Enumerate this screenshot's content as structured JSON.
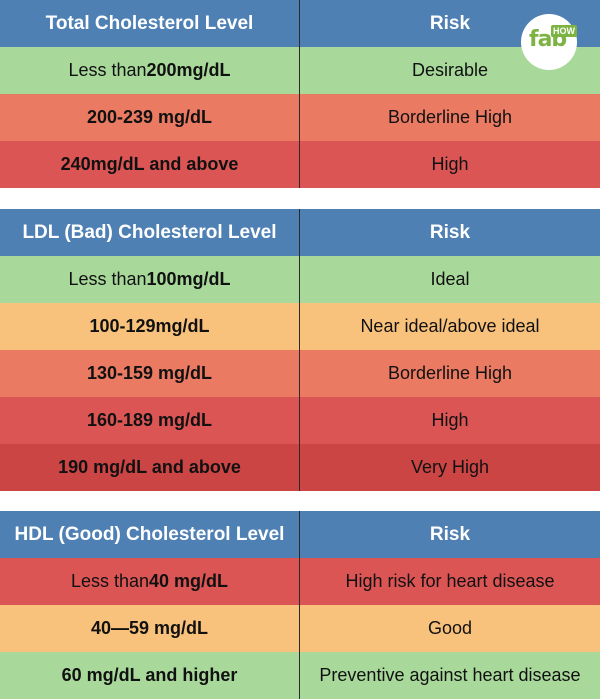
{
  "colors": {
    "header": "#4f80b4",
    "green": "#a8d99b",
    "light_orange": "#f9c27c",
    "salmon": "#ea7a62",
    "red": "#dc5555",
    "dark_red": "#cc4545"
  },
  "logo": {
    "fab": "fab",
    "how": "HOW"
  },
  "total": {
    "header": {
      "level": "Total Cholesterol Level",
      "risk": "Risk"
    },
    "rows": [
      {
        "pre": "Less than ",
        "bold": "200mg/dL",
        "risk": "Desirable"
      },
      {
        "pre": "",
        "bold": "200-239 mg/dL",
        "risk": "Borderline High"
      },
      {
        "pre": "",
        "bold": "240mg/dL and above",
        "risk": "High"
      }
    ]
  },
  "ldl": {
    "header": {
      "level": "LDL (Bad) Cholesterol Level",
      "risk": "Risk"
    },
    "rows": [
      {
        "pre": "Less than ",
        "bold": "100mg/dL",
        "risk": "Ideal"
      },
      {
        "pre": "",
        "bold": "100-129mg/dL",
        "risk": "Near ideal/above ideal"
      },
      {
        "pre": "",
        "bold": "130-159 mg/dL",
        "risk": "Borderline High"
      },
      {
        "pre": "",
        "bold": "160-189 mg/dL",
        "risk": "High"
      },
      {
        "pre": "",
        "bold": "190 mg/dL and above",
        "risk": "Very High"
      }
    ]
  },
  "hdl": {
    "header": {
      "level": "HDL (Good) Cholesterol Level",
      "risk": "Risk"
    },
    "rows": [
      {
        "pre": "Less than ",
        "bold": "40 mg/dL",
        "risk": "High risk for heart disease"
      },
      {
        "pre": "",
        "bold": "40—59 mg/dL",
        "risk": "Good"
      },
      {
        "pre": "",
        "bold": "60 mg/dL and higher",
        "risk": "Preventive against heart disease"
      }
    ]
  }
}
